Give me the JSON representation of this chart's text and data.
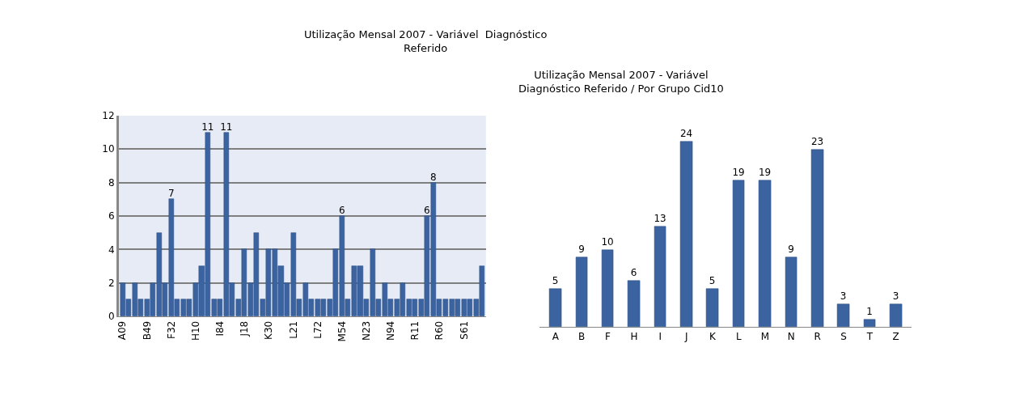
{
  "chart_data": [
    {
      "type": "bar",
      "title": "Utilização Mensal 2007 - Variável  Diagnóstico\nReferido",
      "categories": [
        "A09",
        null,
        null,
        null,
        "B49",
        null,
        null,
        null,
        "F32",
        null,
        null,
        null,
        "H10",
        null,
        null,
        null,
        "I84",
        null,
        null,
        null,
        "J18",
        null,
        null,
        null,
        "K30",
        null,
        null,
        null,
        "L21",
        null,
        null,
        null,
        "L72",
        null,
        null,
        null,
        "M54",
        null,
        null,
        null,
        "N23",
        null,
        null,
        null,
        "N94",
        null,
        null,
        null,
        "R11",
        null,
        null,
        null,
        "R60",
        null,
        null,
        null,
        "S61",
        null,
        null,
        null
      ],
      "values": [
        2,
        1,
        2,
        1,
        1,
        2,
        5,
        2,
        7,
        1,
        1,
        1,
        2,
        3,
        11,
        1,
        1,
        11,
        2,
        1,
        4,
        2,
        5,
        1,
        4,
        4,
        3,
        2,
        5,
        1,
        2,
        1,
        1,
        1,
        1,
        4,
        6,
        1,
        3,
        3,
        1,
        4,
        1,
        2,
        1,
        1,
        2,
        1,
        1,
        1,
        6,
        8,
        1,
        1,
        1,
        1,
        1,
        1,
        1,
        3
      ],
      "value_labels": [
        null,
        null,
        null,
        null,
        null,
        null,
        null,
        null,
        "7",
        null,
        null,
        null,
        null,
        null,
        "11",
        null,
        null,
        "11",
        null,
        null,
        null,
        null,
        null,
        null,
        null,
        null,
        null,
        null,
        null,
        null,
        null,
        null,
        null,
        null,
        null,
        null,
        "6",
        null,
        null,
        null,
        null,
        null,
        null,
        null,
        null,
        null,
        null,
        null,
        null,
        null,
        "6",
        "8",
        null,
        null,
        null,
        null,
        null,
        null,
        null,
        null
      ],
      "color": "#3a63a0",
      "ylim": [
        0,
        12
      ],
      "yticks": [
        0,
        2,
        4,
        6,
        8,
        10,
        12
      ],
      "grid": "y",
      "legend": false
    },
    {
      "type": "bar",
      "title": "Utilização Mensal 2007 - Variável\nDiagnóstico Referido / Por Grupo Cid10",
      "categories": [
        "A",
        "B",
        "F",
        "H",
        "I",
        "J",
        "K",
        "L",
        "M",
        "N",
        "R",
        "S",
        "T",
        "Z"
      ],
      "values": [
        5,
        9,
        10,
        6,
        13,
        24,
        5,
        19,
        19,
        9,
        23,
        3,
        1,
        3
      ],
      "color": "#3a63a0",
      "data_labels": true,
      "legend": false
    }
  ]
}
